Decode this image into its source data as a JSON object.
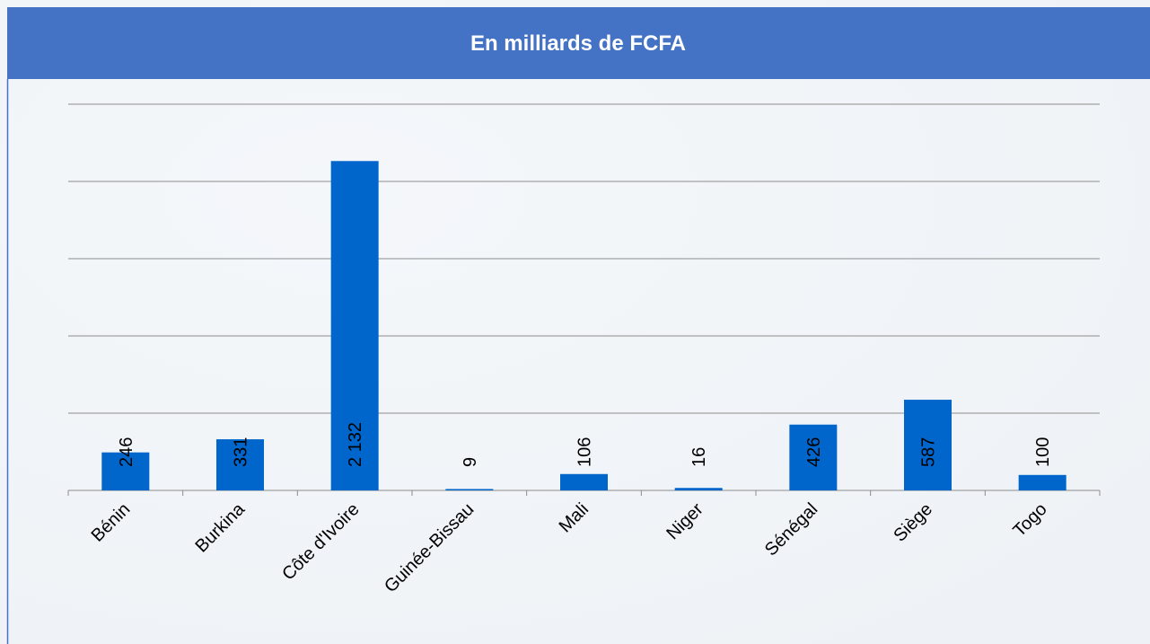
{
  "chart_data": {
    "type": "bar",
    "title": "En milliards de FCFA",
    "categories": [
      "Bénin",
      "Burkina",
      "Côte d'Ivoire",
      "Guinée-Bissau",
      "Mali",
      "Niger",
      "Sénégal",
      "Siège",
      "Togo"
    ],
    "values": [
      246,
      331,
      2132,
      9,
      106,
      16,
      426,
      587,
      100
    ],
    "value_labels": [
      "246",
      "331",
      "2 132",
      "9",
      "106",
      "16",
      "426",
      "587",
      "100"
    ],
    "color": "#0066cc",
    "ylim": [
      0,
      2500
    ],
    "yticks": [
      0,
      500,
      1000,
      1500,
      2000,
      2500
    ],
    "grid": true
  }
}
